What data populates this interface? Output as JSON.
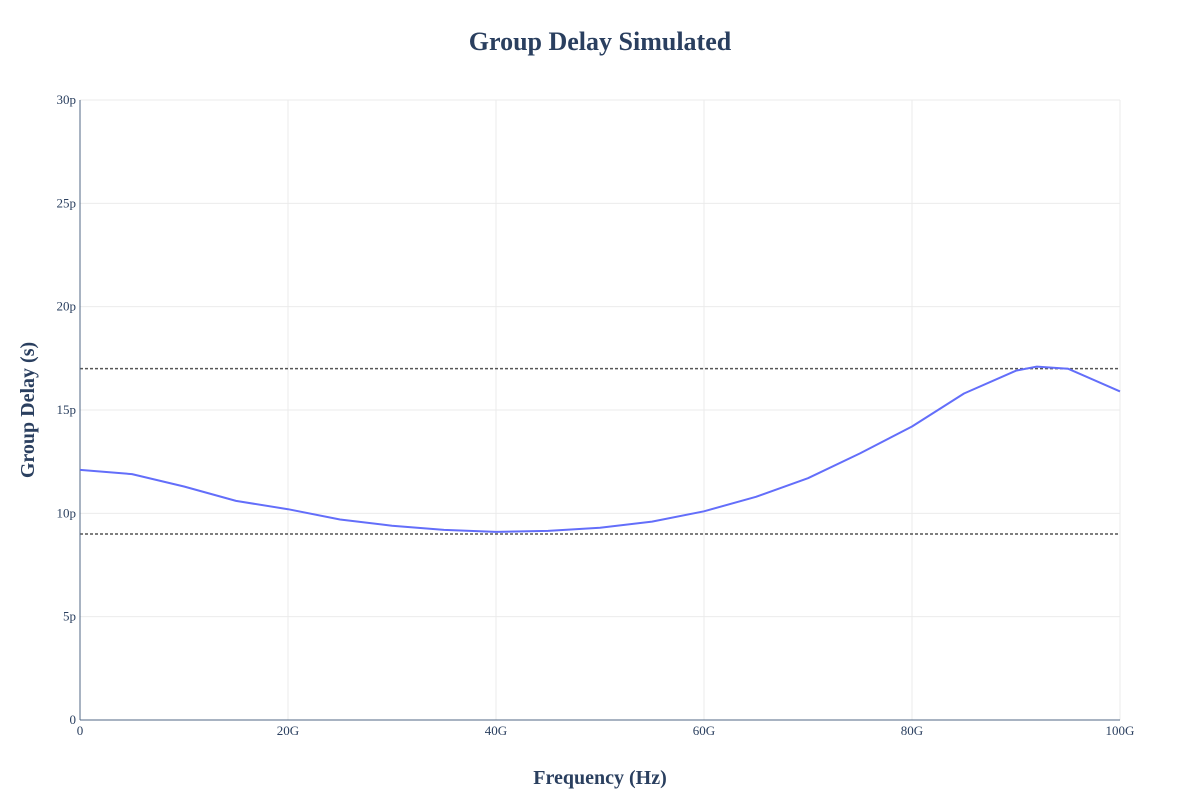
{
  "chart_data": {
    "type": "line",
    "title": "Group Delay Simulated",
    "xlabel": "Frequency (Hz)",
    "ylabel": "Group Delay (s)",
    "xlim": [
      0,
      100000000000
    ],
    "ylim": [
      0,
      3e-11
    ],
    "x_ticks": [
      {
        "value": 0,
        "label": "0"
      },
      {
        "value": 20000000000,
        "label": "20G"
      },
      {
        "value": 40000000000,
        "label": "40G"
      },
      {
        "value": 60000000000,
        "label": "60G"
      },
      {
        "value": 80000000000,
        "label": "80G"
      },
      {
        "value": 100000000000,
        "label": "100G"
      }
    ],
    "y_ticks": [
      {
        "value": 0,
        "label": "0"
      },
      {
        "value": 5e-12,
        "label": "5p"
      },
      {
        "value": 1e-11,
        "label": "10p"
      },
      {
        "value": 1.5e-11,
        "label": "15p"
      },
      {
        "value": 2e-11,
        "label": "20p"
      },
      {
        "value": 2.5e-11,
        "label": "25p"
      },
      {
        "value": 3e-11,
        "label": "30p"
      }
    ],
    "grid": true,
    "reference_lines": [
      {
        "orientation": "horizontal",
        "value": 1.7e-11,
        "style": "dashed",
        "color": "#555555"
      },
      {
        "orientation": "horizontal",
        "value": 9e-12,
        "style": "dashed",
        "color": "#555555"
      }
    ],
    "series": [
      {
        "color": "#636efa",
        "points": [
          [
            0,
            1.21e-11
          ],
          [
            5000000000,
            1.19e-11
          ],
          [
            10000000000,
            1.13e-11
          ],
          [
            15000000000,
            1.06e-11
          ],
          [
            20000000000,
            1.02e-11
          ],
          [
            25000000000,
            9.7e-12
          ],
          [
            30000000000,
            9.4e-12
          ],
          [
            35000000000,
            9.2e-12
          ],
          [
            40000000000,
            9.1e-12
          ],
          [
            45000000000,
            9.15e-12
          ],
          [
            50000000000,
            9.3e-12
          ],
          [
            55000000000,
            9.6e-12
          ],
          [
            60000000000,
            1.01e-11
          ],
          [
            65000000000,
            1.08e-11
          ],
          [
            70000000000,
            1.17e-11
          ],
          [
            75000000000,
            1.29e-11
          ],
          [
            80000000000,
            1.42e-11
          ],
          [
            85000000000,
            1.58e-11
          ],
          [
            90000000000,
            1.69e-11
          ],
          [
            92000000000,
            1.71e-11
          ],
          [
            95000000000,
            1.7e-11
          ],
          [
            100000000000,
            1.59e-11
          ]
        ]
      }
    ]
  }
}
